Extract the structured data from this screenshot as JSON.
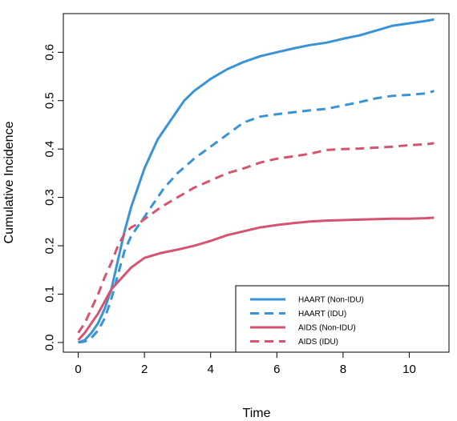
{
  "chart_data": {
    "type": "line",
    "title": "",
    "xlabel": "Time",
    "ylabel": "Cumulative Incidence",
    "xlim": [
      -0.45,
      11.2
    ],
    "ylim": [
      -0.02,
      0.68
    ],
    "x_ticks": [
      0,
      2,
      4,
      6,
      8,
      10
    ],
    "x_tick_labels": [
      "0",
      "2",
      "4",
      "6",
      "8",
      "10"
    ],
    "y_ticks": [
      0.0,
      0.1,
      0.2,
      0.3,
      0.4,
      0.5,
      0.6
    ],
    "y_tick_labels": [
      "0.0",
      "0.1",
      "0.2",
      "0.3",
      "0.4",
      "0.5",
      "0.6"
    ],
    "grid": false,
    "legend_position": "bottom-right",
    "colors": {
      "haart": "#3a93d6",
      "aids": "#d5546f"
    },
    "series": [
      {
        "name": "HAART (Non-IDU)",
        "color": "#3a93d6",
        "dash": "solid",
        "x": [
          0,
          0.2,
          0.4,
          0.6,
          0.8,
          1.0,
          1.2,
          1.4,
          1.6,
          1.8,
          2.0,
          2.2,
          2.4,
          2.6,
          2.8,
          3.0,
          3.2,
          3.5,
          4.0,
          4.5,
          5.0,
          5.5,
          6.0,
          6.5,
          7.0,
          7.5,
          8.0,
          8.5,
          9.0,
          9.5,
          10.0,
          10.5,
          10.75
        ],
        "y": [
          0,
          0.005,
          0.02,
          0.04,
          0.07,
          0.11,
          0.17,
          0.23,
          0.28,
          0.32,
          0.36,
          0.39,
          0.42,
          0.44,
          0.46,
          0.48,
          0.5,
          0.52,
          0.545,
          0.565,
          0.58,
          0.592,
          0.6,
          0.608,
          0.615,
          0.62,
          0.628,
          0.635,
          0.645,
          0.655,
          0.66,
          0.665,
          0.668
        ]
      },
      {
        "name": "HAART (IDU)",
        "color": "#3a93d6",
        "dash": "dashed",
        "x": [
          0,
          0.2,
          0.4,
          0.6,
          0.8,
          1.0,
          1.2,
          1.4,
          1.6,
          1.8,
          2.0,
          2.2,
          2.4,
          2.6,
          2.8,
          3.0,
          3.5,
          4.0,
          4.5,
          5.0,
          5.5,
          6.0,
          6.5,
          7.0,
          7.5,
          8.0,
          8.5,
          9.0,
          9.5,
          10.0,
          10.5,
          10.75
        ],
        "y": [
          0,
          0.002,
          0.01,
          0.025,
          0.05,
          0.09,
          0.14,
          0.19,
          0.22,
          0.24,
          0.26,
          0.28,
          0.3,
          0.32,
          0.335,
          0.35,
          0.38,
          0.405,
          0.43,
          0.455,
          0.467,
          0.472,
          0.476,
          0.48,
          0.483,
          0.49,
          0.497,
          0.505,
          0.51,
          0.512,
          0.515,
          0.52
        ]
      },
      {
        "name": "AIDS (Non-IDU)",
        "color": "#d5546f",
        "dash": "solid",
        "x": [
          0,
          0.2,
          0.4,
          0.6,
          0.8,
          1.0,
          1.2,
          1.4,
          1.6,
          1.8,
          2.0,
          2.5,
          3.0,
          3.5,
          4.0,
          4.5,
          5.0,
          5.5,
          6.0,
          6.5,
          7.0,
          7.5,
          8.0,
          8.5,
          9.0,
          9.5,
          10.0,
          10.5,
          10.75
        ],
        "y": [
          0.005,
          0.02,
          0.04,
          0.06,
          0.085,
          0.11,
          0.125,
          0.14,
          0.155,
          0.165,
          0.175,
          0.185,
          0.192,
          0.2,
          0.21,
          0.222,
          0.23,
          0.238,
          0.243,
          0.247,
          0.25,
          0.252,
          0.253,
          0.254,
          0.255,
          0.256,
          0.256,
          0.257,
          0.258
        ]
      },
      {
        "name": "AIDS (IDU)",
        "color": "#d5546f",
        "dash": "dashed",
        "x": [
          0,
          0.2,
          0.4,
          0.6,
          0.8,
          1.0,
          1.2,
          1.4,
          1.6,
          1.8,
          2.0,
          2.5,
          3.0,
          3.5,
          4.0,
          4.5,
          5.0,
          5.5,
          6.0,
          6.5,
          7.0,
          7.5,
          8.0,
          8.5,
          9.0,
          9.5,
          10.0,
          10.5,
          10.75
        ],
        "y": [
          0.02,
          0.04,
          0.07,
          0.1,
          0.135,
          0.165,
          0.2,
          0.225,
          0.238,
          0.245,
          0.255,
          0.28,
          0.3,
          0.32,
          0.335,
          0.35,
          0.36,
          0.372,
          0.38,
          0.385,
          0.39,
          0.398,
          0.4,
          0.401,
          0.403,
          0.405,
          0.408,
          0.41,
          0.412
        ]
      }
    ]
  }
}
